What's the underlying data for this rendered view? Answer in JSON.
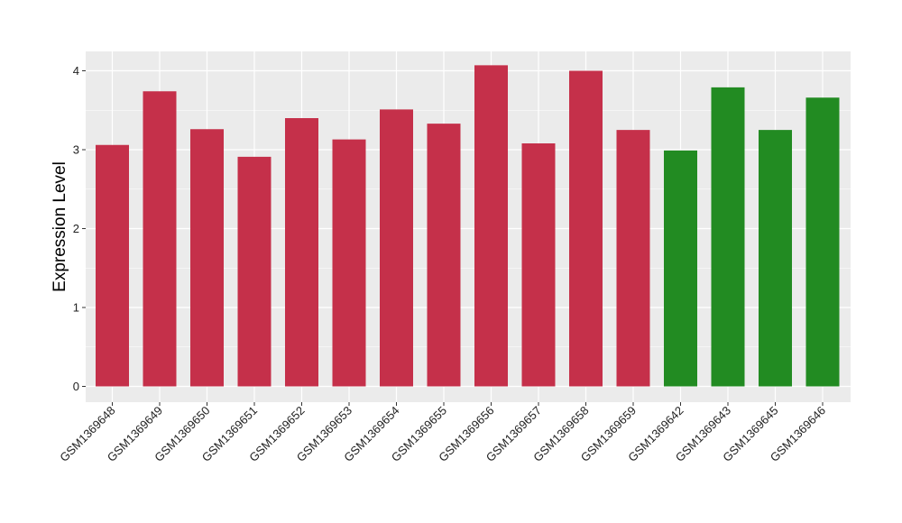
{
  "chart_data": {
    "type": "bar",
    "title": "",
    "xlabel": "",
    "ylabel": "Expression Level",
    "ylim": [
      0,
      4.2
    ],
    "y_ticks": [
      0,
      1,
      2,
      3,
      4
    ],
    "grid": true,
    "legend": "none",
    "panel_background": "#ebebeb",
    "grid_color": "#ffffff",
    "categories": [
      "GSM1369648",
      "GSM1369649",
      "GSM1369650",
      "GSM1369651",
      "GSM1369652",
      "GSM1369653",
      "GSM1369654",
      "GSM1369655",
      "GSM1369656",
      "GSM1369657",
      "GSM1369658",
      "GSM1369659",
      "GSM1369642",
      "GSM1369643",
      "GSM1369645",
      "GSM1369646"
    ],
    "values": [
      3.06,
      3.74,
      3.26,
      2.91,
      3.4,
      3.13,
      3.51,
      3.33,
      4.07,
      3.08,
      4.0,
      3.25,
      2.99,
      3.79,
      3.25,
      3.66
    ],
    "colors": [
      "#c5304a",
      "#c5304a",
      "#c5304a",
      "#c5304a",
      "#c5304a",
      "#c5304a",
      "#c5304a",
      "#c5304a",
      "#c5304a",
      "#c5304a",
      "#c5304a",
      "#c5304a",
      "#228b22",
      "#228b22",
      "#228b22",
      "#228b22"
    ]
  }
}
